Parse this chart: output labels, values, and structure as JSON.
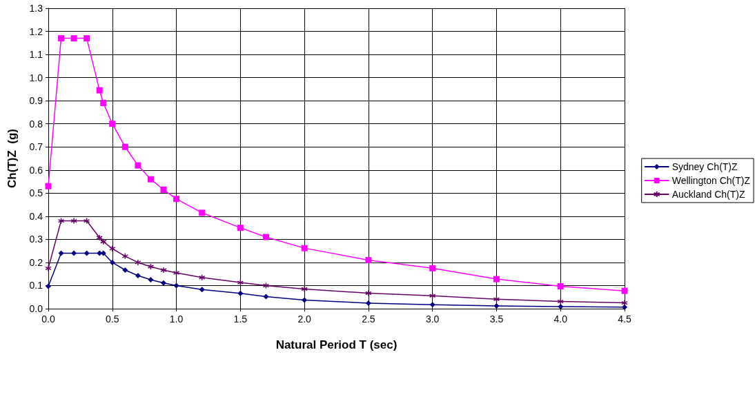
{
  "chart_data": {
    "type": "line",
    "xlabel": "Natural Period T (sec)",
    "ylabel": "Ch(T)Z  (g)",
    "x": [
      0,
      0.1,
      0.2,
      0.3,
      0.4,
      0.43,
      0.5,
      0.6,
      0.7,
      0.8,
      0.9,
      1.0,
      1.2,
      1.5,
      1.7,
      2.0,
      2.5,
      3.0,
      3.5,
      4.0,
      4.5
    ],
    "series": [
      {
        "name": "Sydney Ch(T)Z",
        "color": "#000080",
        "marker": "diamond",
        "values": [
          0.097,
          0.24,
          0.24,
          0.24,
          0.24,
          0.24,
          0.2,
          0.167,
          0.143,
          0.125,
          0.111,
          0.1,
          0.083,
          0.066,
          0.052,
          0.037,
          0.024,
          0.017,
          0.012,
          0.009,
          0.007
        ]
      },
      {
        "name": "Wellington Ch(T)Z",
        "color": "#ff00ff",
        "marker": "square",
        "values": [
          0.53,
          1.17,
          1.17,
          1.17,
          0.945,
          0.89,
          0.8,
          0.7,
          0.62,
          0.56,
          0.515,
          0.475,
          0.415,
          0.35,
          0.31,
          0.262,
          0.21,
          0.175,
          0.128,
          0.097,
          0.077
        ]
      },
      {
        "name": "Auckland Ch(T)Z",
        "color": "#660066",
        "marker": "cross",
        "values": [
          0.175,
          0.38,
          0.38,
          0.38,
          0.307,
          0.29,
          0.26,
          0.227,
          0.2,
          0.182,
          0.167,
          0.155,
          0.135,
          0.113,
          0.1,
          0.085,
          0.067,
          0.056,
          0.041,
          0.031,
          0.025
        ]
      }
    ],
    "xlim": [
      0,
      4.5
    ],
    "xticks": [
      {
        "value": 0,
        "label": "0.0"
      },
      {
        "value": 0.5,
        "label": "0.5"
      },
      {
        "value": 1,
        "label": "1.0"
      },
      {
        "value": 1.5,
        "label": "1.5"
      },
      {
        "value": 2,
        "label": "2.0"
      },
      {
        "value": 2.5,
        "label": "2.5"
      },
      {
        "value": 3,
        "label": "3.0"
      },
      {
        "value": 3.5,
        "label": "3.5"
      },
      {
        "value": 4,
        "label": "4.0"
      },
      {
        "value": 4.5,
        "label": "4.5"
      }
    ],
    "ylim": [
      0,
      1.3
    ],
    "yticks": [
      {
        "value": 0,
        "label": "0.0"
      },
      {
        "value": 0.1,
        "label": "0.1"
      },
      {
        "value": 0.2,
        "label": "0.2"
      },
      {
        "value": 0.3,
        "label": "0.3"
      },
      {
        "value": 0.4,
        "label": "0.4"
      },
      {
        "value": 0.5,
        "label": "0.5"
      },
      {
        "value": 0.6,
        "label": "0.6"
      },
      {
        "value": 0.7,
        "label": "0.7"
      },
      {
        "value": 0.8,
        "label": "0.8"
      },
      {
        "value": 0.9,
        "label": "0.9"
      },
      {
        "value": 1,
        "label": "1.0"
      },
      {
        "value": 1.1,
        "label": "1.1"
      },
      {
        "value": 1.2,
        "label": "1.2"
      },
      {
        "value": 1.3,
        "label": "1.3"
      }
    ],
    "grid": true,
    "legend": "right",
    "line_style": "solid"
  }
}
